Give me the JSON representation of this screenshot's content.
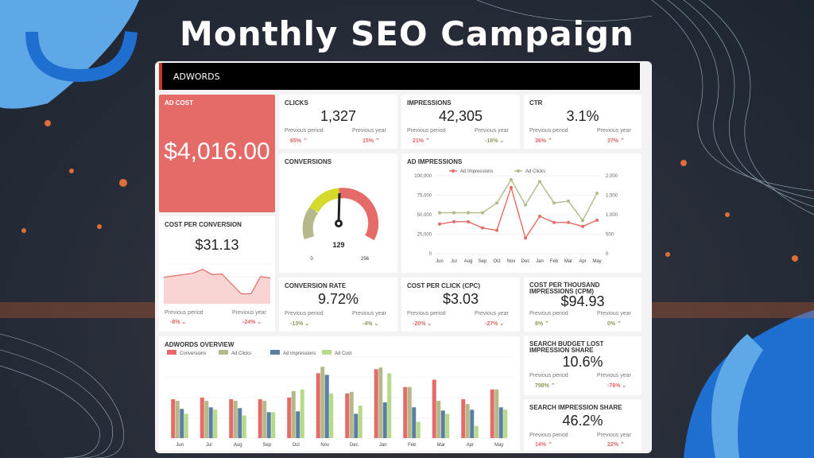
{
  "headline": "Monthly SEO Campaign",
  "header": {
    "title": "ADWORDS"
  },
  "ad_cost": {
    "title": "AD COST",
    "value": "$4,016.00"
  },
  "clicks": {
    "title": "CLICKS",
    "value": "1,327",
    "prev_period_label": "Previous period",
    "prev_period": "65%",
    "prev_year_label": "Previous year",
    "prev_year": "15%"
  },
  "impressions": {
    "title": "IMPRESSIONS",
    "value": "42,305",
    "prev_period_label": "Previous period",
    "prev_period": "21%",
    "prev_year_label": "Previous year",
    "prev_year": "-16%"
  },
  "ctr": {
    "title": "CTR",
    "value": "3.1%",
    "prev_period_label": "Previous period",
    "prev_period": "36%",
    "prev_year_label": "Previous year",
    "prev_year": "37%"
  },
  "conversions": {
    "title": "CONVERSIONS",
    "value": "129",
    "min": "0",
    "max": "256"
  },
  "cost_per_conversion": {
    "title": "COST PER CONVERSION",
    "value": "$31.13",
    "prev_period_label": "Previous period",
    "prev_period": "-8%",
    "prev_year_label": "Previous year",
    "prev_year": "-24%"
  },
  "conversion_rate": {
    "title": "CONVERSION RATE",
    "value": "9.72%",
    "prev_period_label": "Previous period",
    "prev_period": "-13%",
    "prev_year_label": "Previous year",
    "prev_year": "-4%"
  },
  "cpc": {
    "title": "COST PER CLICK (CPC)",
    "value": "$3.03",
    "prev_period_label": "Previous period",
    "prev_period": "-20%",
    "prev_year_label": "Previous year",
    "prev_year": "-27%"
  },
  "cpm": {
    "title_line1": "COST PER THOUSAND",
    "title_line2": "IMPRESSIONS (CPM)",
    "value": "$94.93",
    "prev_period_label": "Previous period",
    "prev_period": "8%",
    "prev_year_label": "Previous year",
    "prev_year": "0%"
  },
  "budget_lost": {
    "title_line1": "SEARCH BUDGET LOST",
    "title_line2": "IMPRESSION SHARE",
    "value": "10.6%",
    "prev_period_label": "Previous period",
    "prev_period": "798%",
    "prev_year_label": "Previous year",
    "prev_year": "-76%"
  },
  "impression_share": {
    "title": "SEARCH IMPRESSION SHARE",
    "value": "46.2%",
    "prev_period_label": "Previous period",
    "prev_period": "14%",
    "prev_year_label": "Previous year",
    "prev_year": "22%"
  },
  "colors": {
    "red": "#e46b67",
    "olive": "#b5b98a",
    "blue": "#5b7fa3",
    "lime": "#b7d98a",
    "gauge_yellow": "#d4d92a"
  },
  "chart_data": [
    {
      "type": "line",
      "title": "AD IMPRESSIONS",
      "categories": [
        "Jun",
        "Jul",
        "Aug",
        "Sep",
        "Oct",
        "Nov",
        "Dec",
        "Jan",
        "Feb",
        "Mar",
        "Apr",
        "May"
      ],
      "series": [
        {
          "name": "Ad Impressions",
          "axis": "left",
          "values": [
            38000,
            41000,
            41000,
            33000,
            30000,
            85000,
            20000,
            48000,
            40000,
            40000,
            35000,
            43000
          ]
        },
        {
          "name": "Ad Clicks",
          "axis": "right",
          "values": [
            1050,
            1050,
            1050,
            1050,
            1300,
            1900,
            1250,
            1850,
            1300,
            1350,
            850,
            1550
          ]
        }
      ],
      "ylim_left": [
        0,
        100000
      ],
      "yticks_left": [
        "0",
        "25,000",
        "50,000",
        "75,000",
        "100,000"
      ],
      "ylim_right": [
        0,
        2000
      ],
      "yticks_right": [
        "0",
        "500",
        "1,000",
        "1,500",
        "2,000"
      ]
    },
    {
      "type": "line",
      "title": "COST PER CONVERSION",
      "series": [
        {
          "name": "Cost per conversion",
          "values": [
            40,
            42,
            44,
            46,
            52,
            44,
            45,
            30,
            15,
            15,
            41,
            39
          ]
        }
      ],
      "ylim": [
        0,
        60
      ]
    },
    {
      "type": "bar",
      "title": "ADWORDS OVERVIEW",
      "categories": [
        "Jun",
        "Jul",
        "Aug",
        "Sep",
        "Oct",
        "Nov",
        "Dec",
        "Jan",
        "Feb",
        "Mar",
        "Apr",
        "May"
      ],
      "series": [
        {
          "name": "Conversions",
          "values": [
            48,
            50,
            48,
            48,
            50,
            80,
            55,
            85,
            63,
            72,
            48,
            60
          ]
        },
        {
          "name": "Ad Clicks",
          "values": [
            46,
            46,
            46,
            46,
            58,
            88,
            57,
            87,
            63,
            46,
            42,
            60
          ]
        },
        {
          "name": "Ad Impressions",
          "values": [
            36,
            38,
            37,
            32,
            33,
            78,
            30,
            44,
            38,
            34,
            35,
            38
          ]
        },
        {
          "name": "Ad Cost",
          "values": [
            30,
            35,
            28,
            32,
            60,
            55,
            40,
            80,
            20,
            30,
            15,
            35
          ]
        }
      ],
      "ylim": [
        0,
        100
      ]
    }
  ]
}
